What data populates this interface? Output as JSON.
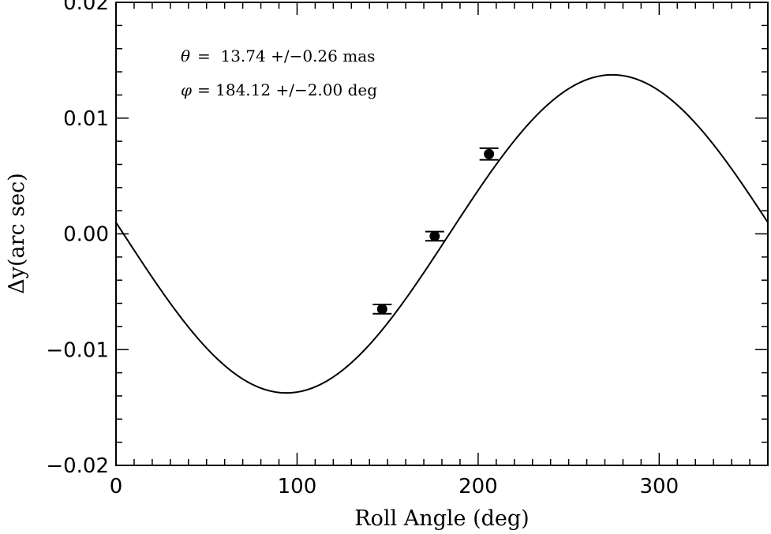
{
  "chart_data": {
    "type": "scatter",
    "xlabel": "Roll Angle (deg)",
    "ylabel": "Δy(arc sec)",
    "xlim": [
      0,
      360
    ],
    "ylim": [
      -0.02,
      0.02
    ],
    "x_ticks": [
      0,
      100,
      200,
      300
    ],
    "x_tick_labels": [
      "0",
      "100",
      "200",
      "300"
    ],
    "y_ticks": [
      -0.02,
      -0.01,
      0.0,
      0.01,
      0.02
    ],
    "y_tick_labels": [
      "−0.02",
      "−0.01",
      "0.00",
      "0.01",
      "0.02"
    ],
    "grid": false,
    "annotations": [
      {
        "symbol": "θ",
        "text": "=  13.74 +/−0.26 mas"
      },
      {
        "symbol": "φ",
        "text": "= 184.12 +/−2.00 deg"
      }
    ],
    "points": [
      {
        "x": 147,
        "y": -0.0065,
        "err": 0.0004
      },
      {
        "x": 176,
        "y": -0.0002,
        "err": 0.0004
      },
      {
        "x": 206,
        "y": 0.0069,
        "err": 0.0005
      }
    ],
    "fit_curve": {
      "model": "sinusoid",
      "amplitude": 0.01374,
      "phase_deg": 184.12
    },
    "colors": {
      "line": "#000000",
      "background": "#ffffff"
    }
  }
}
